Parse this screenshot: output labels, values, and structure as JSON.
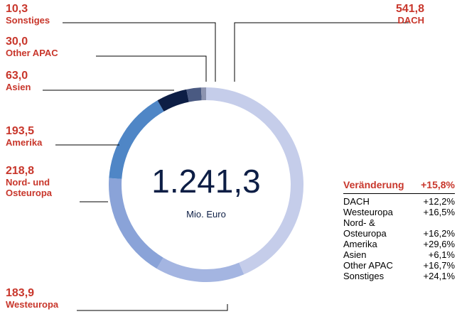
{
  "chart_data": {
    "type": "donut",
    "categories": [
      "DACH",
      "Westeuropa",
      "Nord- und Osteuropa",
      "Amerika",
      "Asien",
      "Other APAC",
      "Sonstiges"
    ],
    "values": [
      541.8,
      183.9,
      218.8,
      193.5,
      63.0,
      30.0,
      10.3
    ],
    "value_labels": [
      "541,8",
      "183,9",
      "218,8",
      "193,5",
      "63,0",
      "30,0",
      "10,3"
    ],
    "colors": [
      "#c5cdea",
      "#a4b5e1",
      "#8aa3d8",
      "#4f86c6",
      "#0d1e45",
      "#4a5a82",
      "#8d94b0"
    ],
    "total": "1.241,3",
    "unit": "Mio. Euro"
  },
  "change_table": {
    "title": "Veränderung",
    "total": "+15,8%",
    "rows": [
      [
        "DACH",
        "+12,2%"
      ],
      [
        "Westeuropa",
        "+16,5%"
      ],
      [
        "Nord- & Osteuropa",
        "+16,2%"
      ],
      [
        "Amerika",
        "+29,6%"
      ],
      [
        "Asien",
        "+6,1%"
      ],
      [
        "Other APAC",
        "+16,7%"
      ],
      [
        "Sonstiges",
        "+24,1%"
      ]
    ]
  }
}
